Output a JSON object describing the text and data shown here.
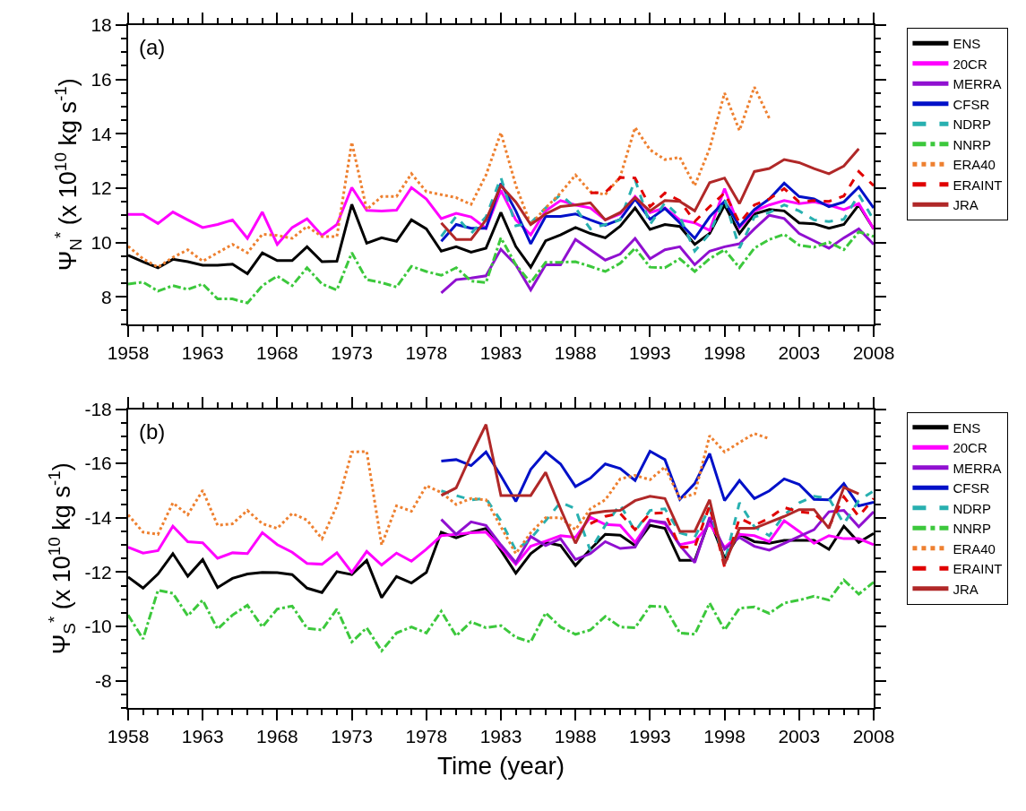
{
  "chart_data": [
    {
      "type": "line",
      "ylabel": "Ψ$_{N}$$^{*}$ (x 10$^{10}$ kg s$^{-1}$)",
      "annotations": [
        "(a)"
      ],
      "xlim": [
        1958,
        2008
      ],
      "xticks": [
        1958,
        1963,
        1968,
        1973,
        1978,
        1983,
        1988,
        1993,
        1998,
        2003,
        2008
      ],
      "ylim": [
        7,
        18
      ],
      "yticks": [
        8,
        10,
        12,
        14,
        16,
        18
      ],
      "legend": "right",
      "marker": "none",
      "series": [
        {
          "name": "ENS",
          "color": "#000000",
          "line_style": "solid",
          "x": [
            1958,
            1959,
            1960,
            1961,
            1962,
            1963,
            1964,
            1965,
            1966,
            1967,
            1968,
            1969,
            1970,
            1971,
            1972,
            1973,
            1974,
            1975,
            1976,
            1977,
            1978,
            1979,
            1980,
            1981,
            1982,
            1983,
            1984,
            1985,
            1986,
            1987,
            1988,
            1989,
            1990,
            1991,
            1992,
            1993,
            1994,
            1995,
            1996,
            1997,
            1998,
            1999,
            2000,
            2001,
            2002,
            2003,
            2004,
            2005,
            2006,
            2007,
            2008
          ],
          "values": [
            9.53,
            9.29,
            9.07,
            9.38,
            9.29,
            9.16,
            9.16,
            9.2,
            8.85,
            9.62,
            9.33,
            9.33,
            9.84,
            9.29,
            9.31,
            11.4,
            9.97,
            10.17,
            10.04,
            10.83,
            10.5,
            9.68,
            9.84,
            9.64,
            9.79,
            11.1,
            9.85,
            9.09,
            10.06,
            10.28,
            10.55,
            10.33,
            10.17,
            10.6,
            11.27,
            10.48,
            10.66,
            10.59,
            9.93,
            10.33,
            11.38,
            10.33,
            11.05,
            11.21,
            11.16,
            10.72,
            10.69,
            10.52,
            10.66,
            11.38,
            10.5
          ]
        },
        {
          "name": "20CR",
          "color": "#ff00ff",
          "line_style": "solid",
          "x": [
            1958,
            1959,
            1960,
            1961,
            1962,
            1963,
            1964,
            1965,
            1966,
            1967,
            1968,
            1969,
            1970,
            1971,
            1972,
            1973,
            1974,
            1975,
            1976,
            1977,
            1978,
            1979,
            1980,
            1981,
            1982,
            1983,
            1984,
            1985,
            1986,
            1987,
            1988,
            1989,
            1990,
            1991,
            1992,
            1993,
            1994,
            1995,
            1996,
            1997,
            1998,
            1999,
            2000,
            2001,
            2002,
            2003,
            2004,
            2005,
            2006,
            2007,
            2008
          ],
          "values": [
            11.03,
            11.03,
            10.7,
            11.12,
            10.83,
            10.55,
            10.66,
            10.83,
            10.15,
            11.12,
            9.93,
            10.55,
            10.87,
            10.26,
            10.66,
            12.02,
            11.18,
            11.16,
            11.19,
            12.02,
            11.6,
            10.88,
            11.07,
            10.94,
            10.52,
            11.92,
            10.83,
            10.28,
            11.16,
            11.54,
            11.38,
            11.27,
            10.83,
            11.05,
            11.69,
            11.1,
            11.27,
            10.83,
            10.72,
            10.44,
            11.98,
            10.55,
            11.16,
            11.38,
            11.54,
            11.43,
            11.49,
            11.38,
            11.21,
            11.43,
            10.5
          ]
        },
        {
          "name": "MERRA",
          "color": "#9010d0",
          "line_style": "solid",
          "x": [
            1979,
            1980,
            1981,
            1982,
            1983,
            1984,
            1985,
            1986,
            1987,
            1988,
            1989,
            1990,
            1991,
            1992,
            1993,
            1994,
            1995,
            1996,
            1997,
            1998,
            1999,
            2000,
            2001,
            2002,
            2003,
            2004,
            2005,
            2006,
            2007,
            2008
          ],
          "values": [
            8.14,
            8.63,
            8.69,
            8.77,
            9.75,
            9.18,
            8.25,
            9.18,
            9.18,
            10.11,
            9.73,
            9.35,
            9.57,
            10.15,
            9.4,
            9.73,
            9.84,
            9.18,
            9.68,
            9.84,
            9.95,
            10.5,
            11.0,
            10.88,
            10.33,
            10.06,
            9.79,
            10.17,
            10.5,
            9.93
          ]
        },
        {
          "name": "CFSR",
          "color": "#0010c8",
          "line_style": "solid",
          "x": [
            1979,
            1980,
            1981,
            1982,
            1983,
            1984,
            1985,
            1986,
            1987,
            1988,
            1989,
            1990,
            1991,
            1992,
            1993,
            1994,
            1995,
            1996,
            1997,
            1998,
            1999,
            2000,
            2001,
            2002,
            2003,
            2004,
            2005,
            2006,
            2007,
            2008
          ],
          "values": [
            10.04,
            10.66,
            10.52,
            10.52,
            12.17,
            11.16,
            9.95,
            10.96,
            10.96,
            11.05,
            10.83,
            10.63,
            10.85,
            11.6,
            10.85,
            11.25,
            10.72,
            10.15,
            10.94,
            11.51,
            10.6,
            11.21,
            11.6,
            12.18,
            11.69,
            11.6,
            11.32,
            11.49,
            12.04,
            11.27
          ]
        },
        {
          "name": "NDRP",
          "color": "#28b0b0",
          "line_style": "dashed",
          "x": [
            1979,
            1980,
            1981,
            1982,
            1983,
            1984,
            1985,
            1986,
            1987,
            1988,
            1989,
            1990,
            1991,
            1992,
            1993,
            1994,
            1995,
            1996,
            1997,
            1998,
            1999,
            2000,
            2001,
            2002,
            2003,
            2004,
            2005,
            2006,
            2007,
            2008
          ],
          "values": [
            10.22,
            10.96,
            10.33,
            10.94,
            12.39,
            10.61,
            10.72,
            11.27,
            11.76,
            11.27,
            10.5,
            10.66,
            10.83,
            12.31,
            10.66,
            11.46,
            10.94,
            9.68,
            10.33,
            11.6,
            9.79,
            10.94,
            11.1,
            11.38,
            11.16,
            10.83,
            10.77,
            10.85,
            11.76,
            10.83
          ]
        },
        {
          "name": "NNRP",
          "color": "#3cc83c",
          "line_style": "dashdot",
          "x": [
            1958,
            1959,
            1960,
            1961,
            1962,
            1963,
            1964,
            1965,
            1966,
            1967,
            1968,
            1969,
            1970,
            1971,
            1972,
            1973,
            1974,
            1975,
            1976,
            1977,
            1978,
            1979,
            1980,
            1981,
            1982,
            1983,
            1984,
            1985,
            1986,
            1987,
            1988,
            1989,
            1990,
            1991,
            1992,
            1993,
            1994,
            1995,
            1996,
            1997,
            1998,
            1999,
            2000,
            2001,
            2002,
            2003,
            2004,
            2005,
            2006,
            2007,
            2008
          ],
          "values": [
            8.47,
            8.54,
            8.21,
            8.41,
            8.27,
            8.47,
            7.92,
            7.92,
            7.77,
            8.41,
            8.76,
            8.41,
            9.07,
            8.47,
            8.25,
            9.62,
            8.63,
            8.52,
            8.36,
            9.12,
            8.93,
            8.79,
            9.07,
            8.58,
            8.52,
            10.17,
            9.18,
            8.52,
            9.27,
            9.27,
            9.29,
            9.12,
            8.93,
            9.23,
            9.79,
            9.09,
            9.07,
            9.4,
            8.93,
            9.4,
            9.73,
            9.07,
            9.79,
            10.11,
            10.3,
            9.9,
            9.82,
            10.01,
            9.73,
            10.39,
            10.22
          ]
        },
        {
          "name": "ERA40",
          "color": "#ee8030",
          "line_style": "dotted",
          "x": [
            1958,
            1959,
            1960,
            1961,
            1962,
            1963,
            1964,
            1965,
            1966,
            1967,
            1968,
            1969,
            1970,
            1971,
            1972,
            1973,
            1974,
            1975,
            1976,
            1977,
            1978,
            1979,
            1980,
            1981,
            1982,
            1983,
            1984,
            1985,
            1986,
            1987,
            1988,
            1989,
            1990,
            1991,
            1992,
            1993,
            1994,
            1995,
            1996,
            1997,
            1998,
            1999,
            2000,
            2001
          ],
          "values": [
            9.86,
            9.4,
            9.09,
            9.45,
            9.73,
            9.31,
            9.62,
            9.93,
            9.62,
            10.3,
            10.26,
            10.15,
            10.59,
            10.22,
            10.22,
            13.69,
            11.21,
            11.69,
            11.69,
            12.53,
            11.87,
            11.76,
            11.65,
            11.4,
            12.48,
            14.04,
            12.1,
            10.66,
            11.27,
            11.82,
            12.48,
            11.87,
            11.76,
            12.42,
            14.23,
            13.41,
            13.05,
            13.13,
            12.09,
            13.46,
            15.5,
            14.12,
            15.72,
            14.57
          ]
        },
        {
          "name": "ERAINT",
          "color": "#e00000",
          "line_style": "dashed",
          "x": [
            1989,
            1990,
            1991,
            1992,
            1993,
            1994,
            1995,
            1996,
            1997,
            1998,
            1999,
            2000,
            2001,
            2002,
            2003,
            2004,
            2005,
            2006,
            2007,
            2008
          ],
          "values": [
            11.82,
            11.84,
            12.39,
            12.37,
            11.32,
            11.82,
            11.54,
            10.77,
            11.32,
            11.82,
            10.72,
            11.38,
            11.6,
            11.98,
            11.49,
            11.54,
            11.51,
            11.71,
            12.61,
            12.09
          ]
        },
        {
          "name": "JRA",
          "color": "#b02828",
          "line_style": "solid",
          "x": [
            1979,
            1980,
            1981,
            1982,
            1983,
            1984,
            1985,
            1986,
            1987,
            1988,
            1989,
            1990,
            1991,
            1992,
            1993,
            1994,
            1995,
            1996,
            1997,
            1998,
            1999,
            2000,
            2001,
            2002,
            2003,
            2004,
            2005,
            2006,
            2007
          ],
          "values": [
            10.72,
            10.11,
            10.11,
            10.83,
            12.09,
            11.49,
            10.66,
            11.05,
            11.32,
            11.38,
            11.46,
            10.83,
            11.1,
            11.65,
            11.16,
            11.54,
            11.51,
            11.16,
            12.2,
            12.37,
            11.43,
            12.61,
            12.72,
            13.05,
            12.94,
            12.72,
            12.53,
            12.81,
            13.45
          ]
        }
      ]
    },
    {
      "type": "line",
      "xlabel": "Time (year)",
      "ylabel": "Ψ$_{S}$$^{*}$ (x 10$^{10}$ kg s$^{-1}$)",
      "annotations": [
        "(b)"
      ],
      "xlim": [
        1958,
        2008
      ],
      "xticks": [
        1958,
        1963,
        1968,
        1973,
        1978,
        1983,
        1988,
        1993,
        1998,
        2003,
        2008
      ],
      "ylim": [
        -7,
        -18
      ],
      "yticks": [
        -18,
        -16,
        -14,
        -12,
        -10,
        -8
      ],
      "legend": "right",
      "marker": "none",
      "series": [
        {
          "name": "ENS",
          "color": "#000000",
          "line_style": "solid",
          "x": [
            1958,
            1959,
            1960,
            1961,
            1962,
            1963,
            1964,
            1965,
            1966,
            1967,
            1968,
            1969,
            1970,
            1971,
            1972,
            1973,
            1974,
            1975,
            1976,
            1977,
            1978,
            1979,
            1980,
            1981,
            1982,
            1983,
            1984,
            1985,
            1986,
            1987,
            1988,
            1989,
            1990,
            1991,
            1992,
            1993,
            1994,
            1995,
            1996,
            1997,
            1998,
            1999,
            2000,
            2001,
            2002,
            2003,
            2004,
            2005,
            2006,
            2007,
            2008
          ],
          "values": [
            -11.82,
            -11.41,
            -11.93,
            -12.68,
            -11.85,
            -12.46,
            -11.43,
            -11.77,
            -11.93,
            -11.99,
            -11.98,
            -11.91,
            -11.41,
            -11.25,
            -12.02,
            -11.91,
            -12.43,
            -11.06,
            -11.84,
            -11.6,
            -11.99,
            -13.47,
            -13.26,
            -13.47,
            -13.61,
            -12.8,
            -11.96,
            -12.68,
            -13.09,
            -12.98,
            -12.24,
            -12.84,
            -13.39,
            -13.36,
            -12.98,
            -13.72,
            -13.61,
            -12.43,
            -12.43,
            -13.94,
            -12.51,
            -13.39,
            -13.12,
            -13.06,
            -13.17,
            -13.17,
            -13.17,
            -12.84,
            -13.69,
            -13.09,
            -13.42
          ]
        },
        {
          "name": "20CR",
          "color": "#ff00ff",
          "line_style": "solid",
          "x": [
            1958,
            1959,
            1960,
            1961,
            1962,
            1963,
            1964,
            1965,
            1966,
            1967,
            1968,
            1969,
            1970,
            1971,
            1972,
            1973,
            1974,
            1975,
            1976,
            1977,
            1978,
            1979,
            1980,
            1981,
            1982,
            1983,
            1984,
            1985,
            1986,
            1987,
            1988,
            1989,
            1990,
            1991,
            1992,
            1993,
            1994,
            1995,
            1996,
            1997,
            1998,
            1999,
            2000,
            2001,
            2002,
            2003,
            2004,
            2005,
            2006,
            2007,
            2008
          ],
          "values": [
            -12.92,
            -12.7,
            -12.79,
            -13.69,
            -13.12,
            -13.08,
            -12.51,
            -12.71,
            -12.68,
            -13.45,
            -13.01,
            -12.73,
            -12.32,
            -12.29,
            -12.71,
            -11.99,
            -12.76,
            -12.26,
            -12.7,
            -12.4,
            -12.84,
            -13.34,
            -13.39,
            -13.45,
            -13.47,
            -12.9,
            -12.29,
            -12.95,
            -13.14,
            -13.34,
            -13.28,
            -14.02,
            -13.75,
            -13.72,
            -13.09,
            -13.91,
            -13.78,
            -13.01,
            -13.12,
            -13.78,
            -12.9,
            -13.39,
            -13.34,
            -13.12,
            -13.89,
            -13.5,
            -13.06,
            -13.34,
            -13.23,
            -13.23,
            -13.01
          ]
        },
        {
          "name": "MERRA",
          "color": "#9010d0",
          "line_style": "solid",
          "x": [
            1979,
            1980,
            1981,
            1982,
            1983,
            1984,
            1985,
            1986,
            1987,
            1988,
            1989,
            1990,
            1991,
            1992,
            1993,
            1994,
            1995,
            1996,
            1997,
            1998,
            1999,
            2000,
            2001,
            2002,
            2003,
            2004,
            2005,
            2006,
            2007,
            2008
          ],
          "values": [
            -13.94,
            -13.39,
            -13.85,
            -13.72,
            -13.0,
            -12.35,
            -13.31,
            -12.98,
            -13.23,
            -12.46,
            -12.68,
            -13.12,
            -12.87,
            -12.92,
            -13.89,
            -13.83,
            -12.98,
            -12.35,
            -14.02,
            -12.84,
            -13.28,
            -12.95,
            -12.81,
            -13.06,
            -13.31,
            -13.56,
            -14.22,
            -14.27,
            -13.67,
            -14.22
          ]
        },
        {
          "name": "CFSR",
          "color": "#0010c8",
          "line_style": "solid",
          "x": [
            1979,
            1980,
            1981,
            1982,
            1983,
            1984,
            1985,
            1986,
            1987,
            1988,
            1989,
            1990,
            1991,
            1992,
            1993,
            1994,
            1995,
            1996,
            1997,
            1998,
            1999,
            2000,
            2001,
            2002,
            2003,
            2004,
            2005,
            2006,
            2007,
            2008
          ],
          "values": [
            -16.09,
            -16.14,
            -15.92,
            -16.42,
            -15.54,
            -14.6,
            -15.78,
            -16.42,
            -15.98,
            -15.15,
            -15.46,
            -15.98,
            -15.81,
            -15.37,
            -16.45,
            -16.14,
            -14.68,
            -15.26,
            -16.36,
            -14.63,
            -15.37,
            -14.71,
            -14.99,
            -15.43,
            -15.23,
            -14.68,
            -14.66,
            -15.26,
            -14.44,
            -14.57
          ]
        },
        {
          "name": "NDRP",
          "color": "#28b0b0",
          "line_style": "dashed",
          "x": [
            1979,
            1980,
            1981,
            1982,
            1983,
            1984,
            1985,
            1986,
            1987,
            1988,
            1989,
            1990,
            1991,
            1992,
            1993,
            1994,
            1995,
            1996,
            1997,
            1998,
            1999,
            2000,
            2001,
            2002,
            2003,
            2004,
            2005,
            2006,
            2007,
            2008
          ],
          "values": [
            -14.99,
            -14.82,
            -14.66,
            -14.71,
            -13.89,
            -12.8,
            -13.23,
            -13.89,
            -14.57,
            -14.33,
            -12.79,
            -13.72,
            -14.49,
            -13.5,
            -14.27,
            -14.33,
            -13.45,
            -13.28,
            -14.38,
            -12.35,
            -14.55,
            -13.67,
            -13.34,
            -14.11,
            -14.55,
            -14.79,
            -14.71,
            -13.78,
            -14.63,
            -14.99
          ]
        },
        {
          "name": "NNRP",
          "color": "#3cc83c",
          "line_style": "dashdot",
          "x": [
            1958,
            1959,
            1960,
            1961,
            1962,
            1963,
            1964,
            1965,
            1966,
            1967,
            1968,
            1969,
            1970,
            1971,
            1972,
            1973,
            1974,
            1975,
            1976,
            1977,
            1978,
            1979,
            1980,
            1981,
            1982,
            1983,
            1984,
            1985,
            1986,
            1987,
            1988,
            1989,
            1990,
            1991,
            1992,
            1993,
            1994,
            1995,
            1996,
            1997,
            1998,
            1999,
            2000,
            2001,
            2002,
            2003,
            2004,
            2005,
            2006,
            2007,
            2008
          ],
          "values": [
            -10.42,
            -9.54,
            -11.33,
            -11.22,
            -10.39,
            -10.97,
            -9.9,
            -10.42,
            -10.78,
            -9.98,
            -10.64,
            -10.75,
            -9.93,
            -9.87,
            -10.64,
            -9.43,
            -9.95,
            -9.1,
            -9.76,
            -9.98,
            -9.76,
            -10.56,
            -9.65,
            -10.17,
            -9.95,
            -10.03,
            -9.6,
            -9.43,
            -10.5,
            -9.98,
            -9.71,
            -9.87,
            -10.37,
            -9.98,
            -9.95,
            -10.75,
            -10.72,
            -9.76,
            -9.71,
            -10.86,
            -9.87,
            -10.67,
            -10.72,
            -10.48,
            -10.86,
            -10.97,
            -11.11,
            -10.97,
            -11.71,
            -11.19,
            -11.63
          ]
        },
        {
          "name": "ERA40",
          "color": "#ee8030",
          "line_style": "dotted",
          "x": [
            1958,
            1959,
            1960,
            1961,
            1962,
            1963,
            1964,
            1965,
            1966,
            1967,
            1968,
            1969,
            1970,
            1971,
            1972,
            1973,
            1974,
            1975,
            1976,
            1977,
            1978,
            1979,
            1980,
            1981,
            1982,
            1983,
            1984,
            1985,
            1986,
            1987,
            1988,
            1989,
            1990,
            1991,
            1992,
            1993,
            1994,
            1995,
            1996,
            1997,
            1998,
            1999,
            2000,
            2001
          ],
          "values": [
            -14.11,
            -13.47,
            -13.39,
            -14.55,
            -14.11,
            -15.01,
            -13.72,
            -13.78,
            -14.27,
            -13.78,
            -13.61,
            -14.16,
            -13.91,
            -13.23,
            -14.44,
            -16.42,
            -16.44,
            -13.0,
            -14.44,
            -14.24,
            -15.18,
            -14.93,
            -14.49,
            -14.71,
            -14.66,
            -13.67,
            -12.68,
            -13.45,
            -14.0,
            -14.0,
            -13.56,
            -14.33,
            -14.66,
            -15.43,
            -15.56,
            -15.4,
            -15.87,
            -14.71,
            -14.88,
            -17.02,
            -16.42,
            -16.77,
            -17.1,
            -16.91
          ]
        },
        {
          "name": "ERAINT",
          "color": "#e00000",
          "line_style": "dashed",
          "x": [
            1989,
            1990,
            1991,
            1992,
            1993,
            1994,
            1995,
            1996,
            1997,
            1998,
            1999,
            2000,
            2001,
            2002,
            2003,
            2004,
            2005,
            2006,
            2007,
            2008
          ],
          "values": [
            -13.78,
            -14.05,
            -14.16,
            -13.56,
            -14.16,
            -14.19,
            -12.92,
            -12.92,
            -14.44,
            -12.18,
            -13.99,
            -13.72,
            -13.99,
            -14.38,
            -14.22,
            -14.16,
            -13.67,
            -14.77,
            -14.05,
            -14.71
          ]
        },
        {
          "name": "JRA",
          "color": "#b02828",
          "line_style": "solid",
          "x": [
            1979,
            1980,
            1981,
            1982,
            1983,
            1984,
            1985,
            1986,
            1987,
            1988,
            1989,
            1990,
            1991,
            1992,
            1993,
            1994,
            1995,
            1996,
            1997,
            1998,
            1999,
            2000,
            2001,
            2002,
            2003,
            2004,
            2005,
            2006,
            2007
          ],
          "values": [
            -14.82,
            -15.1,
            -16.31,
            -17.43,
            -14.82,
            -14.82,
            -14.82,
            -15.67,
            -14.33,
            -13.06,
            -14.16,
            -14.24,
            -14.27,
            -14.63,
            -14.79,
            -14.71,
            -13.5,
            -13.5,
            -14.66,
            -12.29,
            -13.61,
            -13.61,
            -13.83,
            -14.05,
            -14.3,
            -14.3,
            -13.61,
            -15.12,
            -14.88
          ]
        }
      ]
    }
  ]
}
